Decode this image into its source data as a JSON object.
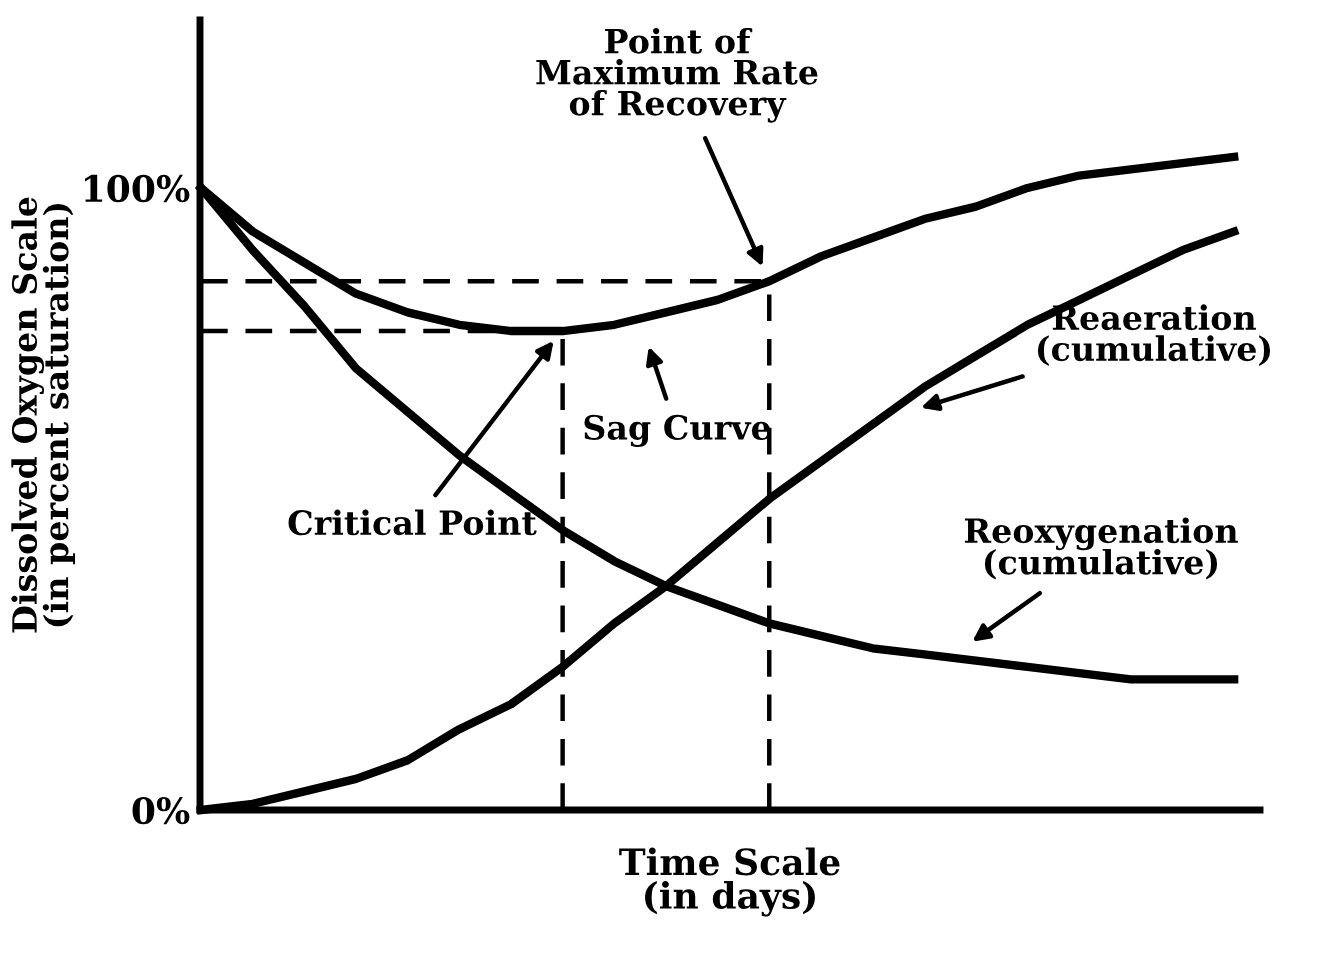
{
  "chart_data": {
    "type": "line",
    "xlabel": "Time Scale\n(in days)",
    "ylabel": "Dissolved Oxygen Scale\n(in percent saturation)",
    "categories": [
      null,
      null,
      null,
      null,
      null,
      null,
      null,
      null,
      null,
      null,
      null,
      null,
      null,
      null,
      null,
      null,
      null,
      null,
      null,
      null,
      null
    ],
    "ylim": [
      0,
      127
    ],
    "yticks": [
      {
        "value": 0,
        "label": "0%"
      },
      {
        "value": 100,
        "label": "100%"
      }
    ],
    "grid": false,
    "legend": false,
    "marker": "none",
    "series": [
      {
        "color": "#000000",
        "line_style": "solid",
        "values": [
          100,
          93,
          88,
          83,
          80,
          78,
          77,
          77,
          78,
          80,
          82,
          85,
          89,
          92,
          95,
          97,
          100,
          102,
          103,
          104,
          105
        ]
      },
      {
        "color": "#000000",
        "line_style": "solid",
        "values": [
          100,
          90,
          81,
          71,
          64,
          57,
          51,
          45,
          40,
          36,
          33,
          30,
          28,
          26,
          25,
          24,
          23,
          22,
          21,
          21,
          21
        ]
      },
      {
        "color": "#000000",
        "line_style": "solid",
        "values": [
          0,
          1,
          3,
          5,
          8,
          13,
          17,
          23,
          30,
          36,
          43,
          50,
          56,
          62,
          68,
          73,
          78,
          82,
          86,
          90,
          93
        ]
      },
      {
        "color": "#000000",
        "line_style": "dashed",
        "values": [
          77,
          77,
          77,
          77,
          77,
          77,
          77,
          77,
          null,
          null,
          null,
          null,
          null,
          null,
          null,
          null,
          null,
          null,
          null,
          null,
          null
        ]
      },
      {
        "color": "#000000",
        "line_style": "dashed",
        "values": [
          85,
          85,
          85,
          85,
          85,
          85,
          85,
          85,
          85,
          85,
          85,
          85,
          null,
          null,
          null,
          null,
          null,
          null,
          null,
          null,
          null
        ]
      }
    ],
    "annotations": [
      "Point of\nMaximum Rate\nof Recovery",
      "Sag Curve",
      "Critical Point",
      "Reaeration\n(cumulative)",
      "Reoxygenation\n(cumulative)"
    ]
  }
}
